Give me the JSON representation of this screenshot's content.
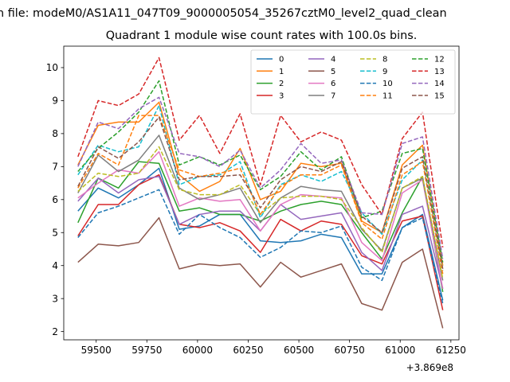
{
  "window_title": "n file: modeM0/AS1A11_047T09_9000005054_35267cztM0_level2_quad_clean",
  "chart_data": {
    "type": "line",
    "title": "Quadrant 1 module wise count rates with 100.0s bins.",
    "xlabel": "",
    "ylabel": "",
    "x_offset_label": "+3.869e8",
    "x_offset": 386900000,
    "xlim": [
      59340,
      61290
    ],
    "ylim": [
      1.75,
      10.65
    ],
    "xticks": [
      59500,
      59750,
      60000,
      60250,
      60500,
      60750,
      61000,
      61250
    ],
    "yticks": [
      2,
      3,
      4,
      5,
      6,
      7,
      8,
      9,
      10
    ],
    "x": [
      59410,
      59510,
      59610,
      59710,
      59810,
      59910,
      60010,
      60110,
      60210,
      60310,
      60410,
      60510,
      60610,
      60710,
      60810,
      60910,
      61010,
      61110,
      61210
    ],
    "legend_position": "upper-right",
    "legend_columns": 4,
    "series": [
      {
        "name": "0",
        "color": "#1f77b4",
        "dash": "solid",
        "values": [
          5.65,
          6.35,
          6.05,
          6.45,
          6.95,
          5.1,
          5.2,
          5.55,
          5.55,
          4.75,
          4.7,
          4.75,
          4.95,
          4.85,
          3.75,
          3.75,
          5.15,
          5.55,
          2.95
        ]
      },
      {
        "name": "1",
        "color": "#ff7f0e",
        "dash": "solid",
        "values": [
          7.05,
          8.25,
          8.35,
          8.35,
          8.95,
          6.75,
          6.25,
          6.55,
          7.55,
          6.0,
          6.25,
          7.1,
          7.0,
          7.1,
          5.35,
          5.0,
          7.05,
          7.65,
          4.0
        ]
      },
      {
        "name": "2",
        "color": "#2ca02c",
        "dash": "solid",
        "values": [
          5.3,
          6.65,
          6.35,
          7.15,
          7.1,
          5.65,
          5.75,
          5.55,
          5.55,
          5.35,
          5.65,
          5.85,
          5.95,
          5.85,
          5.0,
          4.2,
          5.6,
          6.7,
          3.2
        ]
      },
      {
        "name": "3",
        "color": "#d62728",
        "dash": "solid",
        "values": [
          4.9,
          5.85,
          5.85,
          6.45,
          6.75,
          5.25,
          5.15,
          5.3,
          5.05,
          4.4,
          5.4,
          5.05,
          5.35,
          5.25,
          4.3,
          4.05,
          5.35,
          5.5,
          2.65
        ]
      },
      {
        "name": "4",
        "color": "#9467bd",
        "dash": "solid",
        "values": [
          5.95,
          6.65,
          6.2,
          6.6,
          6.7,
          5.25,
          5.55,
          5.65,
          5.65,
          5.05,
          5.85,
          5.4,
          5.5,
          5.6,
          4.4,
          3.85,
          5.55,
          5.8,
          3.3
        ]
      },
      {
        "name": "5",
        "color": "#8c564b",
        "dash": "solid",
        "values": [
          4.1,
          4.65,
          4.6,
          4.7,
          5.45,
          3.9,
          4.05,
          4.0,
          4.05,
          3.35,
          4.1,
          3.65,
          3.85,
          4.05,
          2.85,
          2.65,
          4.1,
          4.5,
          2.1
        ]
      },
      {
        "name": "6",
        "color": "#e377c2",
        "dash": "solid",
        "values": [
          6.05,
          6.5,
          6.9,
          6.8,
          7.45,
          5.8,
          6.05,
          5.95,
          6.0,
          5.05,
          5.85,
          6.15,
          6.1,
          6.05,
          4.7,
          4.15,
          6.2,
          6.6,
          3.3
        ]
      },
      {
        "name": "7",
        "color": "#7f7f7f",
        "dash": "solid",
        "values": [
          6.2,
          7.35,
          6.85,
          7.2,
          7.95,
          6.35,
          6.0,
          6.15,
          6.35,
          5.3,
          6.05,
          6.4,
          6.3,
          6.25,
          5.1,
          4.45,
          6.35,
          6.65,
          3.55
        ]
      },
      {
        "name": "8",
        "color": "#bcbd22",
        "dash": "dashed",
        "values": [
          6.25,
          6.8,
          6.7,
          6.8,
          7.6,
          6.3,
          6.15,
          6.15,
          6.45,
          5.55,
          6.05,
          6.1,
          6.1,
          6.0,
          5.15,
          4.4,
          6.35,
          6.7,
          3.6
        ]
      },
      {
        "name": "9",
        "color": "#17becf",
        "dash": "dashed",
        "values": [
          6.75,
          7.65,
          7.45,
          7.6,
          8.85,
          6.45,
          6.7,
          6.75,
          7.15,
          5.45,
          6.45,
          6.75,
          6.55,
          6.85,
          5.6,
          4.95,
          6.6,
          7.2,
          3.85
        ]
      },
      {
        "name": "10",
        "color": "#1f77b4",
        "dash": "dashed",
        "values": [
          4.85,
          5.6,
          5.8,
          6.05,
          6.3,
          4.95,
          5.55,
          5.15,
          4.85,
          4.25,
          4.55,
          5.05,
          5.0,
          5.2,
          3.95,
          3.55,
          5.15,
          5.45,
          2.85
        ]
      },
      {
        "name": "11",
        "color": "#ff7f0e",
        "dash": "dashed",
        "values": [
          6.35,
          7.4,
          7.05,
          8.55,
          8.55,
          6.9,
          6.7,
          6.8,
          6.95,
          5.55,
          6.4,
          6.75,
          6.75,
          7.05,
          5.3,
          4.8,
          6.75,
          7.15,
          3.75
        ]
      },
      {
        "name": "12",
        "color": "#2ca02c",
        "dash": "dashed",
        "values": [
          6.85,
          7.55,
          8.05,
          8.65,
          9.6,
          7.05,
          7.3,
          7.05,
          7.35,
          6.3,
          6.7,
          7.45,
          6.9,
          7.3,
          5.45,
          5.65,
          7.4,
          7.55,
          4.1
        ]
      },
      {
        "name": "13",
        "color": "#d62728",
        "dash": "dashed",
        "values": [
          7.3,
          9.0,
          8.85,
          9.2,
          10.3,
          7.8,
          8.55,
          7.4,
          8.6,
          6.45,
          8.55,
          7.75,
          8.05,
          7.8,
          6.45,
          5.55,
          7.85,
          8.65,
          4.55
        ]
      },
      {
        "name": "14",
        "color": "#9467bd",
        "dash": "dashed",
        "values": [
          7.0,
          8.35,
          8.15,
          8.75,
          9.1,
          7.4,
          7.3,
          7.0,
          7.5,
          6.35,
          6.9,
          7.7,
          7.1,
          7.2,
          5.6,
          5.55,
          7.7,
          7.9,
          4.2
        ]
      },
      {
        "name": "15",
        "color": "#8c564b",
        "dash": "dashed",
        "values": [
          6.4,
          7.6,
          7.25,
          7.75,
          8.5,
          6.6,
          6.7,
          6.7,
          6.75,
          5.75,
          6.6,
          7.0,
          6.85,
          7.15,
          5.5,
          5.0,
          6.95,
          7.3,
          3.9
        ]
      }
    ]
  }
}
